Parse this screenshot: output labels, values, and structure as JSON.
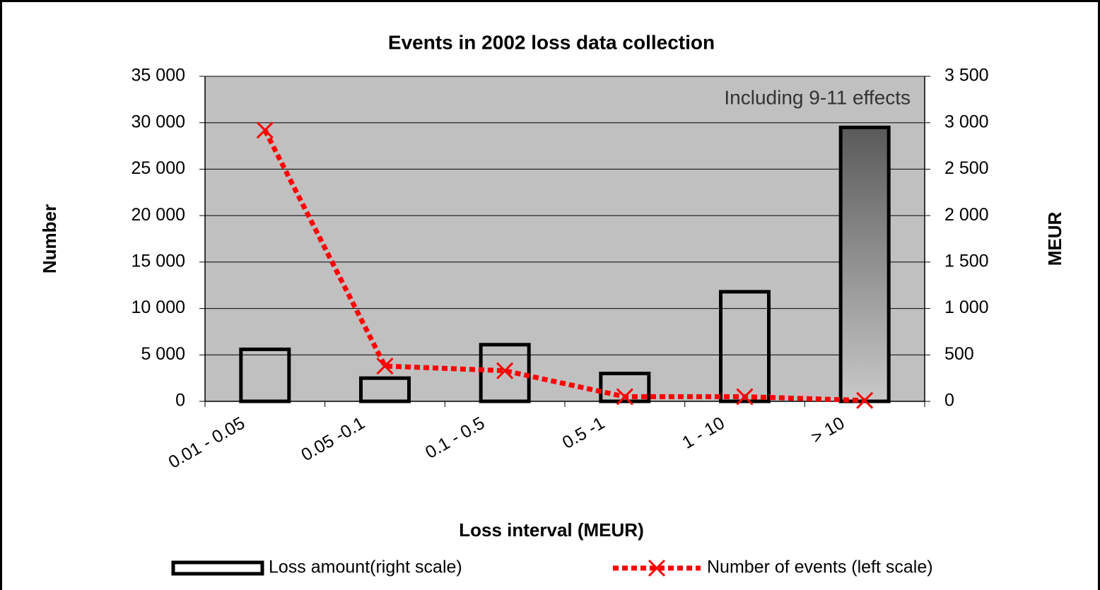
{
  "chart_data": {
    "type": "bar_line",
    "title": "Events in 2002 loss data collection",
    "annotation": "Including 9-11 effects",
    "x_label": "Loss interval (MEUR)",
    "y_label": "Number",
    "y2_label": "MEUR",
    "categories": [
      "0.01 - 0.05",
      "0.05 -0.1",
      "0.1 - 0.5",
      "0.5 -1",
      "1 - 10",
      "> 10"
    ],
    "series": [
      {
        "name": "Loss amount(right scale)",
        "type": "bar",
        "axis": "y2",
        "color": "#000000",
        "values": [
          560,
          250,
          610,
          300,
          1180,
          2950
        ]
      },
      {
        "name": "Number of events (left scale)",
        "type": "line",
        "axis": "y",
        "color": "#ff0000",
        "values": [
          29200,
          3800,
          3300,
          500,
          500,
          100
        ]
      }
    ],
    "ylim": [
      0,
      35000
    ],
    "yticks": [
      0,
      {
        "value": 5000,
        "label": "5 000"
      },
      {
        "value": 10000,
        "label": "10 000"
      },
      {
        "value": 15000,
        "label": "15 000"
      },
      {
        "value": 20000,
        "label": "20 000"
      },
      {
        "value": 25000,
        "label": "25 000"
      },
      {
        "value": 30000,
        "label": "30 000"
      },
      {
        "value": 35000,
        "label": "35 000"
      }
    ],
    "y2lim": [
      0,
      3500
    ],
    "y2ticks": [
      0,
      500,
      {
        "value": 1000,
        "label": "1 000"
      },
      {
        "value": 1500,
        "label": "1 500"
      },
      {
        "value": 2000,
        "label": "2 000"
      },
      {
        "value": 2500,
        "label": "2 500"
      },
      {
        "value": 3000,
        "label": "3 000"
      },
      {
        "value": 3500,
        "label": "3 500"
      }
    ],
    "grid": true,
    "plot_background": "#c0c0c0"
  }
}
